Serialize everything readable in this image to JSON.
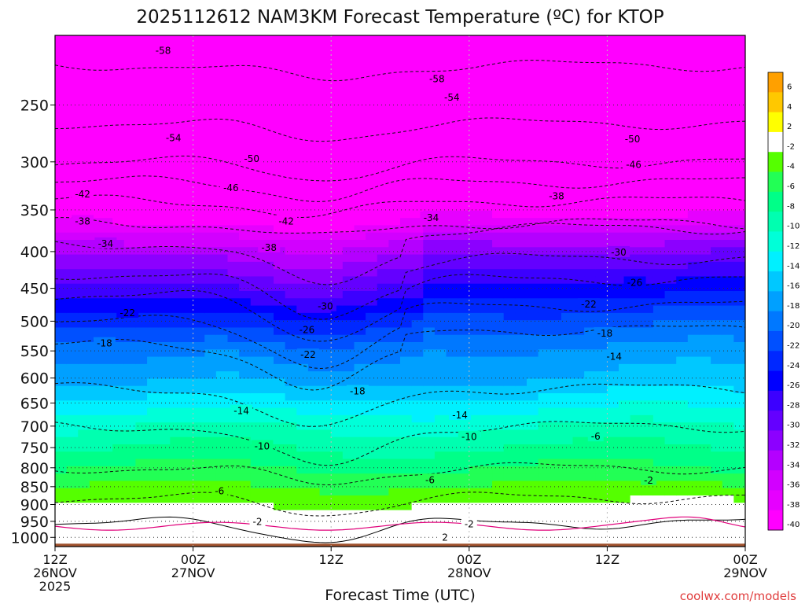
{
  "chart_data": {
    "type": "heatmap",
    "title": "2025112612 NAM3KM Forecast Temperature (ºC) for KTOP",
    "xlabel": "Forecast Time (UTC)",
    "ylabel": "",
    "x_ticks": [
      {
        "hour": 0,
        "line1": "12Z",
        "line2": "26NOV",
        "line3": "2025"
      },
      {
        "hour": 12,
        "line1": "00Z",
        "line2": "27NOV",
        "line3": ""
      },
      {
        "hour": 24,
        "line1": "12Z",
        "line2": "",
        "line3": ""
      },
      {
        "hour": 36,
        "line1": "00Z",
        "line2": "28NOV",
        "line3": ""
      },
      {
        "hour": 48,
        "line1": "12Z",
        "line2": "",
        "line3": ""
      },
      {
        "hour": 60,
        "line1": "00Z",
        "line2": "29NOV",
        "line3": ""
      }
    ],
    "xlim": [
      0,
      60
    ],
    "y_ticks": [
      "250",
      "300",
      "350",
      "400",
      "450",
      "500",
      "550",
      "600",
      "650",
      "700",
      "750",
      "800",
      "850",
      "900",
      "950",
      "1000"
    ],
    "ylim_hpa": [
      200,
      1030
    ],
    "y_scale": "log-pressure",
    "grid": true,
    "colorbar_labels": [
      "6",
      "4",
      "2",
      "-2",
      "-4",
      "-6",
      "-8",
      "-10",
      "-12",
      "-14",
      "-16",
      "-18",
      "-20",
      "-22",
      "-24",
      "-26",
      "-28",
      "-30",
      "-32",
      "-34",
      "-36",
      "-38",
      "-40"
    ],
    "colorbar_colors": [
      "#ffa000",
      "#ffc800",
      "#ffff00",
      "#ffffff",
      "#55ff00",
      "#22ff55",
      "#00ff88",
      "#00ffb0",
      "#00ffd8",
      "#00f0ff",
      "#00c8ff",
      "#00a0ff",
      "#0078ff",
      "#0050ff",
      "#0028ff",
      "#0000ff",
      "#3c00ff",
      "#6400ff",
      "#8c00ff",
      "#b400ff",
      "#d200ff",
      "#e600ff",
      "#ff00ff"
    ],
    "isotherms": [
      {
        "value": -58,
        "level": 220
      },
      {
        "value": -54,
        "level": 265
      },
      {
        "value": -50,
        "level": 300
      },
      {
        "value": -46,
        "level": 320
      },
      {
        "value": -42,
        "level": 340
      },
      {
        "value": -38,
        "level": 365
      },
      {
        "value": -34,
        "level": 390
      },
      {
        "value": -30,
        "level": 430
      },
      {
        "value": -26,
        "level": 460
      },
      {
        "value": -22,
        "level": 500
      },
      {
        "value": -18,
        "level": 540
      },
      {
        "value": -14,
        "level": 620
      },
      {
        "value": -10,
        "level": 700
      },
      {
        "value": -6,
        "level": 800
      },
      {
        "value": -2,
        "level": 880
      },
      {
        "value": 2,
        "level": 955
      }
    ],
    "contour_labels": [
      {
        "text": "-58",
        "hour": 9.4,
        "level": 210
      },
      {
        "text": "-58",
        "hour": 33.2,
        "level": 230
      },
      {
        "text": "-54",
        "hour": 34.5,
        "level": 244
      },
      {
        "text": "-54",
        "hour": 10.3,
        "level": 278
      },
      {
        "text": "-50",
        "hour": 17.1,
        "level": 297
      },
      {
        "text": "-50",
        "hour": 50.2,
        "level": 279
      },
      {
        "text": "-46",
        "hour": 50.3,
        "level": 303
      },
      {
        "text": "-46",
        "hour": 15.3,
        "level": 326
      },
      {
        "text": "-42",
        "hour": 2.4,
        "level": 333
      },
      {
        "text": "-42",
        "hour": 20.1,
        "level": 363
      },
      {
        "text": "-38",
        "hour": 2.4,
        "level": 363
      },
      {
        "text": "-38",
        "hour": 43.6,
        "level": 335
      },
      {
        "text": "-38",
        "hour": 18.6,
        "level": 395
      },
      {
        "text": "-34",
        "hour": 4.4,
        "level": 390
      },
      {
        "text": "-34",
        "hour": 32.7,
        "level": 359
      },
      {
        "text": "-30",
        "hour": 49.0,
        "level": 401
      },
      {
        "text": "-30",
        "hour": 23.5,
        "level": 477
      },
      {
        "text": "-26",
        "hour": 50.4,
        "level": 442
      },
      {
        "text": "-26",
        "hour": 21.9,
        "level": 514
      },
      {
        "text": "-22",
        "hour": 6.3,
        "level": 487
      },
      {
        "text": "-22",
        "hour": 46.4,
        "level": 474
      },
      {
        "text": "-22",
        "hour": 22.0,
        "level": 557
      },
      {
        "text": "-18",
        "hour": 4.3,
        "level": 537
      },
      {
        "text": "-18",
        "hour": 47.8,
        "level": 520
      },
      {
        "text": "-18",
        "hour": 26.3,
        "level": 626
      },
      {
        "text": "-14",
        "hour": 48.6,
        "level": 560
      },
      {
        "text": "-14",
        "hour": 16.2,
        "level": 667
      },
      {
        "text": "-14",
        "hour": 35.2,
        "level": 676
      },
      {
        "text": "-10",
        "hour": 36.0,
        "level": 725
      },
      {
        "text": "-10",
        "hour": 18.0,
        "level": 747
      },
      {
        "text": "-6",
        "hour": 47.0,
        "level": 724
      },
      {
        "text": "-6",
        "hour": 32.6,
        "level": 832
      },
      {
        "text": "-6",
        "hour": 14.3,
        "level": 862
      },
      {
        "text": "-2",
        "hour": 51.6,
        "level": 833
      },
      {
        "text": "-2",
        "hour": 17.6,
        "level": 951
      },
      {
        "text": "-2",
        "hour": 36.0,
        "level": 958
      },
      {
        "text": "2",
        "hour": 33.9,
        "level": 1000
      }
    ],
    "underground_color": "#a0522d",
    "credit": "coolwx.com/models"
  }
}
